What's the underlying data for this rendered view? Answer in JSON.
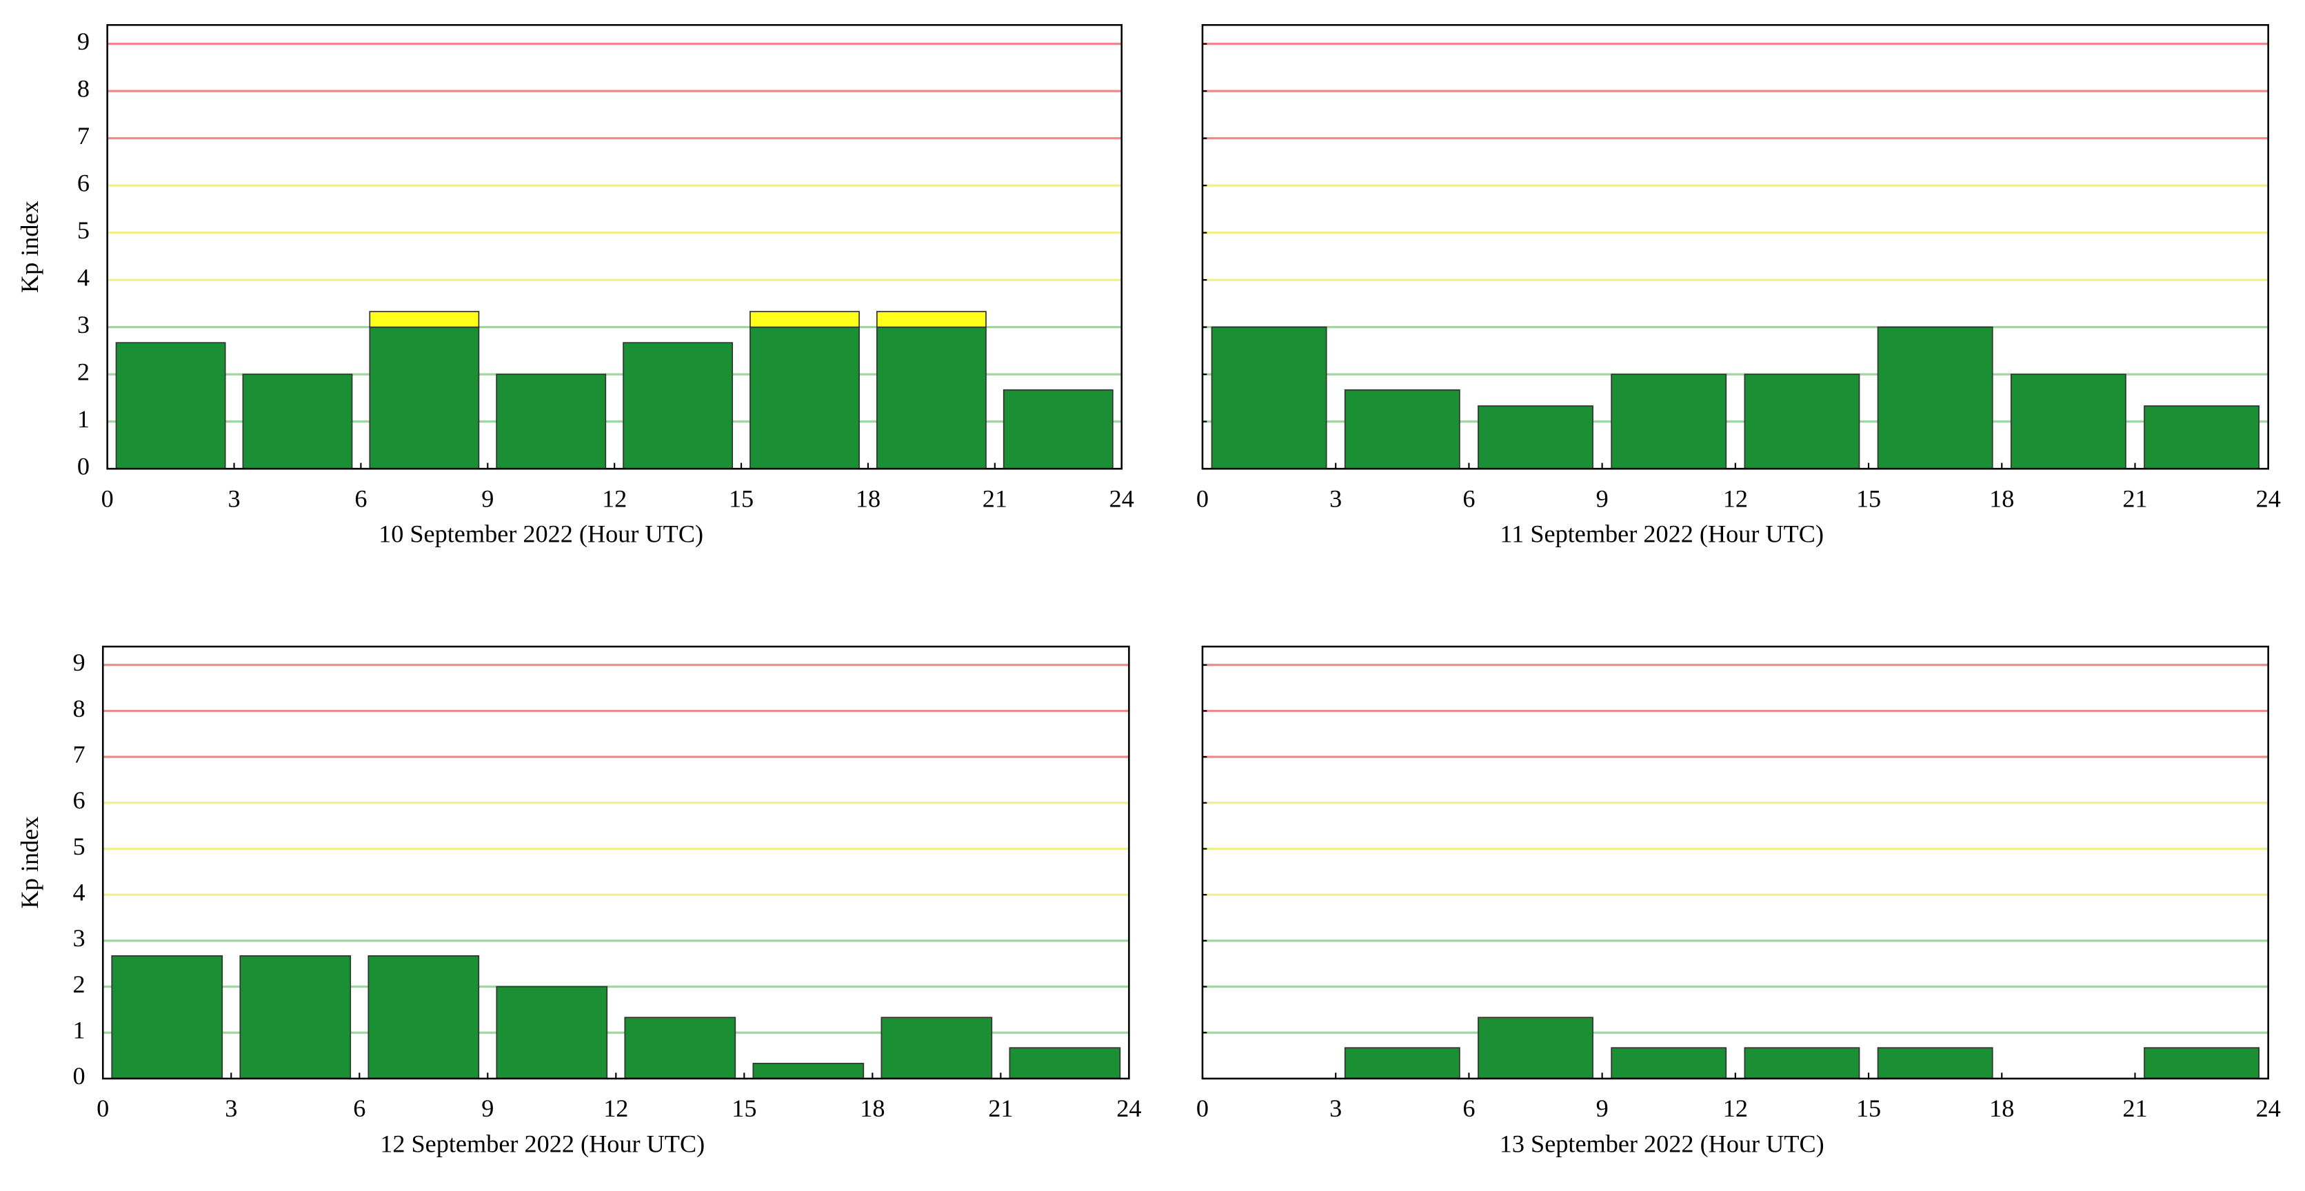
{
  "chart_data": [
    {
      "type": "bar",
      "xlabel": "10 September 2022 (Hour UTC)",
      "ylabel": "Kp index",
      "xlim": [
        0,
        24
      ],
      "xticks": [
        0,
        3,
        6,
        9,
        12,
        15,
        18,
        21,
        24
      ],
      "ylim": [
        0,
        9.4
      ],
      "yticks": [
        0,
        1,
        2,
        3,
        4,
        5,
        6,
        7,
        8,
        9
      ],
      "show_ytick_labels": true,
      "grid": true,
      "grid_colors": [
        "#000000",
        "#9fd89f",
        "#9fd89f",
        "#9fd89f",
        "#f0f08a",
        "#f0f08a",
        "#f0f08a",
        "#f08a8a",
        "#f08a8a",
        "#f08a8a"
      ],
      "series": [
        {
          "color": "#1a8f33",
          "values": [
            2.67,
            2,
            3,
            2,
            2.67,
            3,
            3,
            1.67
          ]
        },
        {
          "color": "#ffff1a",
          "values": [
            0,
            0,
            0.33,
            0,
            0,
            0.33,
            0.33,
            0
          ]
        }
      ]
    },
    {
      "type": "bar",
      "xlabel": "11 September 2022 (Hour UTC)",
      "xlim": [
        0,
        24
      ],
      "xticks": [
        0,
        3,
        6,
        9,
        12,
        15,
        18,
        21,
        24
      ],
      "ylim": [
        0,
        9.4
      ],
      "yticks": [
        0,
        1,
        2,
        3,
        4,
        5,
        6,
        7,
        8,
        9
      ],
      "show_ytick_labels": false,
      "grid": true,
      "grid_colors": [
        "#000000",
        "#9fd89f",
        "#9fd89f",
        "#9fd89f",
        "#f0f08a",
        "#f0f08a",
        "#f0f08a",
        "#f08a8a",
        "#f08a8a",
        "#f08a8a"
      ],
      "series": [
        {
          "color": "#1a8f33",
          "values": [
            3,
            1.67,
            1.33,
            2,
            2,
            3,
            2,
            1.33
          ]
        }
      ]
    },
    {
      "type": "bar",
      "xlabel": "12 September 2022 (Hour UTC)",
      "ylabel": "Kp index",
      "xlim": [
        0,
        24
      ],
      "xticks": [
        0,
        3,
        6,
        9,
        12,
        15,
        18,
        21,
        24
      ],
      "ylim": [
        0,
        9.4
      ],
      "yticks": [
        0,
        1,
        2,
        3,
        4,
        5,
        6,
        7,
        8,
        9
      ],
      "show_ytick_labels": true,
      "grid": true,
      "grid_colors": [
        "#000000",
        "#9fd89f",
        "#9fd89f",
        "#9fd89f",
        "#f0f08a",
        "#f0f08a",
        "#f0f08a",
        "#f08a8a",
        "#f08a8a",
        "#f08a8a"
      ],
      "series": [
        {
          "color": "#1a8f33",
          "values": [
            2.67,
            2.67,
            2.67,
            2,
            1.33,
            0.33,
            1.33,
            0.67
          ]
        }
      ]
    },
    {
      "type": "bar",
      "xlabel": "13 September 2022 (Hour UTC)",
      "xlim": [
        0,
        24
      ],
      "xticks": [
        0,
        3,
        6,
        9,
        12,
        15,
        18,
        21,
        24
      ],
      "ylim": [
        0,
        9.4
      ],
      "yticks": [
        0,
        1,
        2,
        3,
        4,
        5,
        6,
        7,
        8,
        9
      ],
      "show_ytick_labels": false,
      "grid": true,
      "grid_colors": [
        "#000000",
        "#9fd89f",
        "#9fd89f",
        "#9fd89f",
        "#f0f08a",
        "#f0f08a",
        "#f0f08a",
        "#f08a8a",
        "#f08a8a",
        "#f08a8a"
      ],
      "series": [
        {
          "color": "#1a8f33",
          "values": [
            0,
            0.67,
            1.33,
            0.67,
            0.67,
            0.67,
            0,
            0.67
          ]
        }
      ]
    }
  ]
}
